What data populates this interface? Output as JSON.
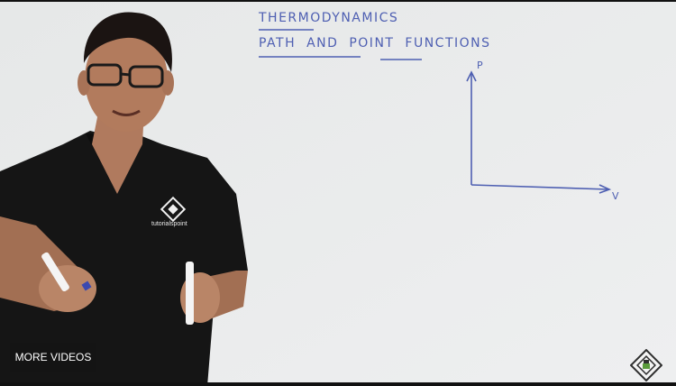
{
  "video": {
    "title_line": "THERMODYNAMICS",
    "subtitle_line": "PATH AND POINT FUNCTIONS",
    "axis_y_label": "P",
    "axis_x_label": "V",
    "shirt_logo_text": "tutorialspoint"
  },
  "controls": {
    "more_videos_label": "MORE VIDEOS"
  },
  "colors": {
    "marker_blue": "#4e5fb2",
    "whiteboard": "#e9ebeb",
    "shirt": "#141414",
    "overlay": "#141414"
  },
  "icons": {
    "watermark": "tutorialspoint-logo-icon"
  }
}
